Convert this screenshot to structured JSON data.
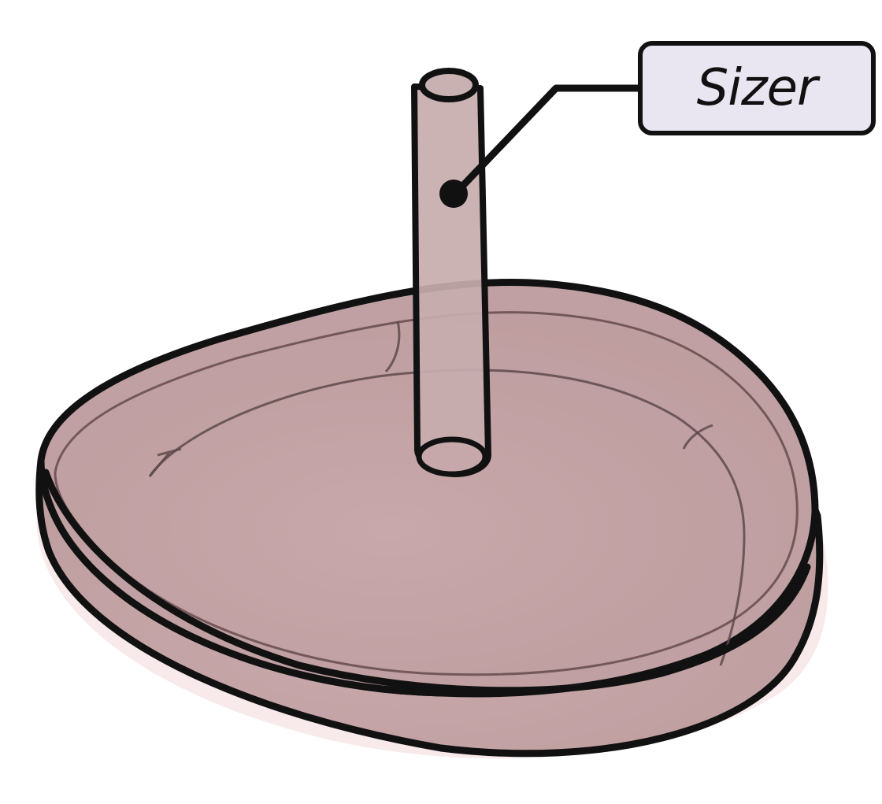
{
  "callout": {
    "label": "Sizer"
  },
  "colors": {
    "outline": "#111111",
    "dish_fill": "#c2a3a5",
    "dish_inner": "#c9abad",
    "tube_fill": "#c7adae",
    "label_fill": "#e9e6f1"
  },
  "icons": {
    "callout_marker": "filled-dot",
    "object": "petri-dish-with-sizer-tube"
  }
}
